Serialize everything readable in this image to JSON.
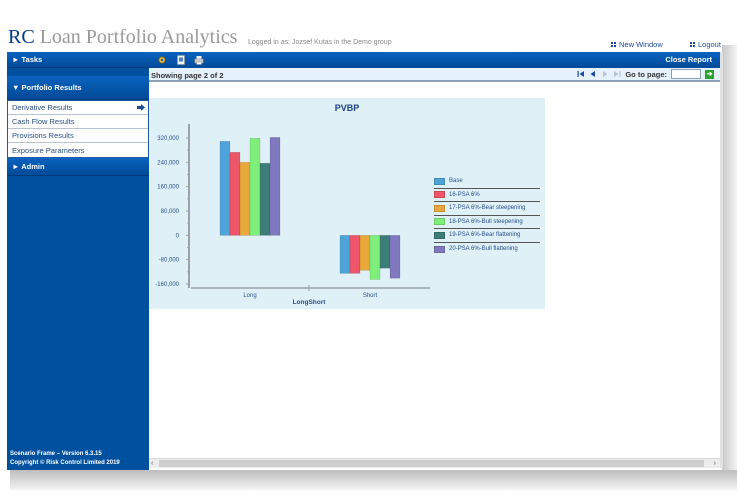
{
  "app": {
    "brand_prefix": "RC",
    "brand_title": " Loan Portfolio Analytics",
    "logged_in": "Logged in as: Jozsef Kutas in the Demo group",
    "new_window": "New Window",
    "logout": "Logout"
  },
  "sidebar": {
    "tasks": "► Tasks",
    "portfolio_results": "▼ Portfolio Results",
    "items": [
      {
        "label": "Derivative Results",
        "active": true
      },
      {
        "label": "Cash Flow Results"
      },
      {
        "label": "Provisions Results"
      },
      {
        "label": "Exposure Parameters"
      }
    ],
    "admin": "► Admin",
    "footer_version": "Scenario Frame – Version 6.3.15",
    "footer_copyright": "Copyright © Risk Control Limited 2019"
  },
  "toolbar": {
    "icons": [
      "settings-icon",
      "report-icon",
      "print-icon"
    ],
    "close_report": "Close Report"
  },
  "pagination": {
    "showing": "Showing page  2  of  2",
    "go_to_label": "Go to page:",
    "go_to_value": "",
    "go_button": "➔"
  },
  "colors": {
    "header_blue": "#0050a0",
    "chart_bg": "#dff0f7",
    "title_blue": "#1a3f86"
  },
  "chart_data": {
    "type": "bar",
    "title": "PVBP",
    "xlabel": "LongShort",
    "ylabel": "",
    "categories": [
      "Long",
      "Short"
    ],
    "ylim": [
      -160000,
      320000
    ],
    "yticks": [
      "320,000",
      "240,000",
      "160,000",
      "80,000",
      "0",
      "-80,000",
      "-160,000"
    ],
    "legend_position": "right",
    "grid": false,
    "series": [
      {
        "name": "Base",
        "color": "#4ea3d9",
        "values": [
          309000,
          -125000
        ]
      },
      {
        "name": "16-PSA 6%",
        "color": "#f0566a",
        "values": [
          273000,
          -125000
        ]
      },
      {
        "name": "17-PSA 6%-Bear steepening",
        "color": "#e9a93a",
        "values": [
          240000,
          -115000
        ]
      },
      {
        "name": "18-PSA 6%-Bull steepening",
        "color": "#7ef07a",
        "values": [
          319000,
          -145000
        ]
      },
      {
        "name": "19-PSA 6%-Bear flattening",
        "color": "#3d7d78",
        "values": [
          237000,
          -108000
        ]
      },
      {
        "name": "20-PSA 6%-Bull flattening",
        "color": "#8079c0",
        "values": [
          322000,
          -141000
        ]
      }
    ]
  }
}
